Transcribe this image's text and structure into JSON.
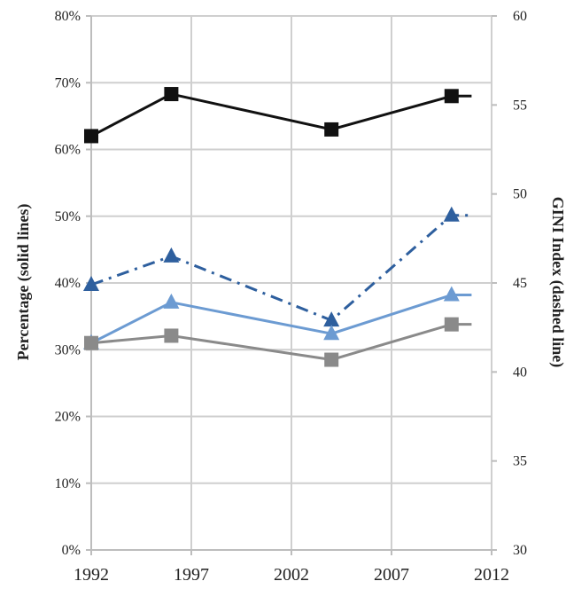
{
  "chart_data": {
    "type": "line",
    "title": "",
    "x_ticks": [
      "1992",
      "1997",
      "2002",
      "2007",
      "2012"
    ],
    "xlim": [
      1992,
      2012
    ],
    "y_left": {
      "label": "Percentage (solid lines)",
      "ticks": [
        "0%",
        "10%",
        "20%",
        "30%",
        "40%",
        "50%",
        "60%",
        "70%",
        "80%"
      ],
      "lim": [
        0,
        80
      ]
    },
    "y_right": {
      "label": "GINI Index (dashed line)",
      "ticks": [
        "30",
        "35",
        "40",
        "45",
        "50",
        "55",
        "60"
      ],
      "lim": [
        30,
        60
      ]
    },
    "grid": true,
    "legend": "none",
    "x": [
      1992,
      1996,
      2004,
      2010
    ],
    "series": [
      {
        "axis": "left",
        "style": "solid",
        "marker": "square",
        "color": "#111111",
        "values": [
          62,
          68.3,
          63,
          68
        ]
      },
      {
        "axis": "right",
        "style": "dash-dot",
        "marker": "triangle",
        "color": "#2e5f9e",
        "values": [
          44.9,
          46.5,
          42.9,
          48.8
        ]
      },
      {
        "axis": "left",
        "style": "solid",
        "marker": "triangle",
        "color": "#6c9bd2",
        "values": [
          31,
          37.1,
          32.4,
          38.2
        ]
      },
      {
        "axis": "left",
        "style": "solid",
        "marker": "square",
        "color": "#8a8a8a",
        "values": [
          31,
          32.1,
          28.5,
          33.8
        ]
      }
    ]
  }
}
